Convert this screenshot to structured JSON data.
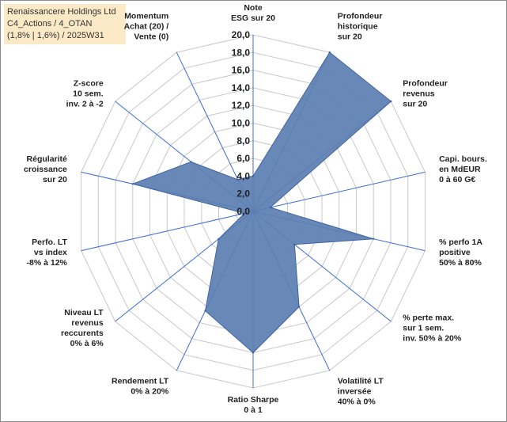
{
  "header": {
    "line1": "Renaissancere Holdings Ltd",
    "line2": "C4_Actions / 4_OTAN",
    "line3": "(1,8% | 1,6%) / 2025W31"
  },
  "chart_data": {
    "type": "radar",
    "title": "",
    "rmax": 20,
    "ticks": [
      "0,0",
      "2,0",
      "4,0",
      "6,0",
      "8,0",
      "10,0",
      "12,0",
      "14,0",
      "16,0",
      "18,0",
      "20,0"
    ],
    "tick_values": [
      0,
      2,
      4,
      6,
      8,
      10,
      12,
      14,
      16,
      18,
      20
    ],
    "axes": [
      {
        "label": [
          "Note",
          "ESG sur 20"
        ],
        "value": 4
      },
      {
        "label": [
          "Profondeur",
          "historique",
          "sur 20"
        ],
        "value": 20
      },
      {
        "label": [
          "Profondeur",
          "revenus",
          "sur 20"
        ],
        "value": 20
      },
      {
        "label": [
          "Capi. bours.",
          "en MdEUR",
          "0 à 60 G€"
        ],
        "value": 2
      },
      {
        "label": [
          "% perfo 1A",
          "positive",
          "50% à 80%"
        ],
        "value": 14
      },
      {
        "label": [
          "% perte max.",
          "sur 1 sem.",
          "inv. 50% à 20%"
        ],
        "value": 6
      },
      {
        "label": [
          "Volatilité LT",
          "inversée",
          "40% à 0%"
        ],
        "value": 12
      },
      {
        "label": [
          "Ratio Sharpe",
          "0 à 1"
        ],
        "value": 16
      },
      {
        "label": [
          "Rendement LT",
          "0% à 20%"
        ],
        "value": 12.5
      },
      {
        "label": [
          "Niveau LT",
          "revenus",
          "reccurents",
          "0% à 6%"
        ],
        "value": 5
      },
      {
        "label": [
          "Perfo. LT",
          "vs index",
          "-8% à 12%"
        ],
        "value": 1
      },
      {
        "label": [
          "Régularité",
          "croissance",
          "sur 20"
        ],
        "value": 14
      },
      {
        "label": [
          "Z-score",
          "10 sem.",
          "inv. 2 à -2"
        ],
        "value": 9
      },
      {
        "label": [
          "Momentum",
          "Achat (20) /",
          "Vente (0)"
        ],
        "value": 4
      }
    ],
    "colors": {
      "fill": "#5b7fb1",
      "stroke": "#3f63a1",
      "grid": "#c8c8c8",
      "axis": "#3b6bd6"
    }
  }
}
